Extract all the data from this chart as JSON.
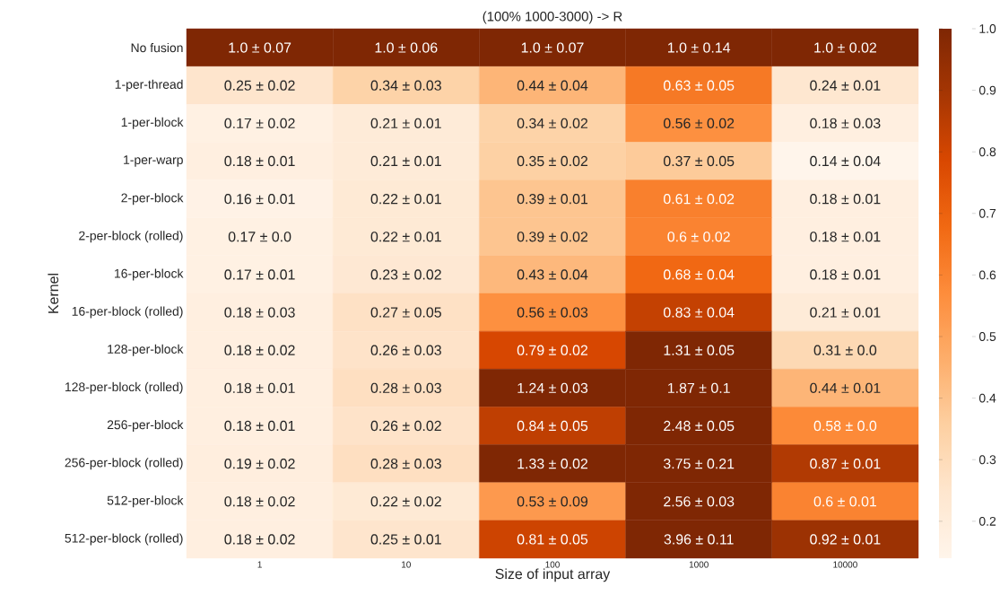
{
  "chart_data": {
    "type": "heatmap",
    "title": "(100% 1000-3000) -> R",
    "xlabel": "Size of input array",
    "ylabel": "Kernel",
    "categories": [
      "1",
      "10",
      "100",
      "1000",
      "10000"
    ],
    "y_categories": [
      "No fusion",
      "1-per-thread",
      "1-per-block",
      "1-per-warp",
      "2-per-block",
      "2-per-block (rolled)",
      "16-per-block",
      "16-per-block (rolled)",
      "128-per-block",
      "128-per-block (rolled)",
      "256-per-block",
      "256-per-block (rolled)",
      "512-per-block",
      "512-per-block (rolled)"
    ],
    "cells": [
      [
        1.0,
        1.0,
        1.0,
        1.0,
        1.0
      ],
      [
        0.25,
        0.34,
        0.44,
        0.63,
        0.24
      ],
      [
        0.17,
        0.21,
        0.34,
        0.56,
        0.18
      ],
      [
        0.18,
        0.21,
        0.35,
        0.37,
        0.14
      ],
      [
        0.16,
        0.22,
        0.39,
        0.61,
        0.18
      ],
      [
        0.17,
        0.22,
        0.39,
        0.6,
        0.18
      ],
      [
        0.17,
        0.23,
        0.43,
        0.68,
        0.18
      ],
      [
        0.18,
        0.27,
        0.56,
        0.83,
        0.21
      ],
      [
        0.18,
        0.26,
        0.79,
        1.31,
        0.31
      ],
      [
        0.18,
        0.28,
        1.24,
        1.87,
        0.44
      ],
      [
        0.18,
        0.26,
        0.84,
        2.48,
        0.58
      ],
      [
        0.19,
        0.28,
        1.33,
        3.75,
        0.87
      ],
      [
        0.18,
        0.22,
        0.53,
        2.56,
        0.6
      ],
      [
        0.18,
        0.25,
        0.81,
        3.96,
        0.92
      ]
    ],
    "cell_labels": [
      [
        "1.0 ± 0.07",
        "1.0 ± 0.06",
        "1.0 ± 0.07",
        "1.0 ± 0.14",
        "1.0 ± 0.02"
      ],
      [
        "0.25 ± 0.02",
        "0.34 ± 0.03",
        "0.44 ± 0.04",
        "0.63 ± 0.05",
        "0.24 ± 0.01"
      ],
      [
        "0.17 ± 0.02",
        "0.21 ± 0.01",
        "0.34 ± 0.02",
        "0.56 ± 0.02",
        "0.18 ± 0.03"
      ],
      [
        "0.18 ± 0.01",
        "0.21 ± 0.01",
        "0.35 ± 0.02",
        "0.37 ± 0.05",
        "0.14 ± 0.04"
      ],
      [
        "0.16 ± 0.01",
        "0.22 ± 0.01",
        "0.39 ± 0.01",
        "0.61 ± 0.02",
        "0.18 ± 0.01"
      ],
      [
        "0.17 ± 0.0",
        "0.22 ± 0.01",
        "0.39 ± 0.02",
        "0.6 ± 0.02",
        "0.18 ± 0.01"
      ],
      [
        "0.17 ± 0.01",
        "0.23 ± 0.02",
        "0.43 ± 0.04",
        "0.68 ± 0.04",
        "0.18 ± 0.01"
      ],
      [
        "0.18 ± 0.03",
        "0.27 ± 0.05",
        "0.56 ± 0.03",
        "0.83 ± 0.04",
        "0.21 ± 0.01"
      ],
      [
        "0.18 ± 0.02",
        "0.26 ± 0.03",
        "0.79 ± 0.02",
        "1.31 ± 0.05",
        "0.31 ± 0.0"
      ],
      [
        "0.18 ± 0.01",
        "0.28 ± 0.03",
        "1.24 ± 0.03",
        "1.87 ± 0.1",
        "0.44 ± 0.01"
      ],
      [
        "0.18 ± 0.01",
        "0.26 ± 0.02",
        "0.84 ± 0.05",
        "2.48 ± 0.05",
        "0.58 ± 0.0"
      ],
      [
        "0.19 ± 0.02",
        "0.28 ± 0.03",
        "1.33 ± 0.02",
        "3.75 ± 0.21",
        "0.87 ± 0.01"
      ],
      [
        "0.18 ± 0.02",
        "0.22 ± 0.02",
        "0.53 ± 0.09",
        "2.56 ± 0.03",
        "0.6 ± 0.01"
      ],
      [
        "0.18 ± 0.02",
        "0.25 ± 0.01",
        "0.81 ± 0.05",
        "3.96 ± 0.11",
        "0.92 ± 0.01"
      ]
    ],
    "clim": [
      0.14,
      1.0
    ],
    "cticks": [
      0.2,
      0.3,
      0.4,
      0.5,
      0.6,
      0.7,
      0.8,
      0.9,
      {
        "value": 1.0,
        "label": "1.0"
      }
    ]
  }
}
